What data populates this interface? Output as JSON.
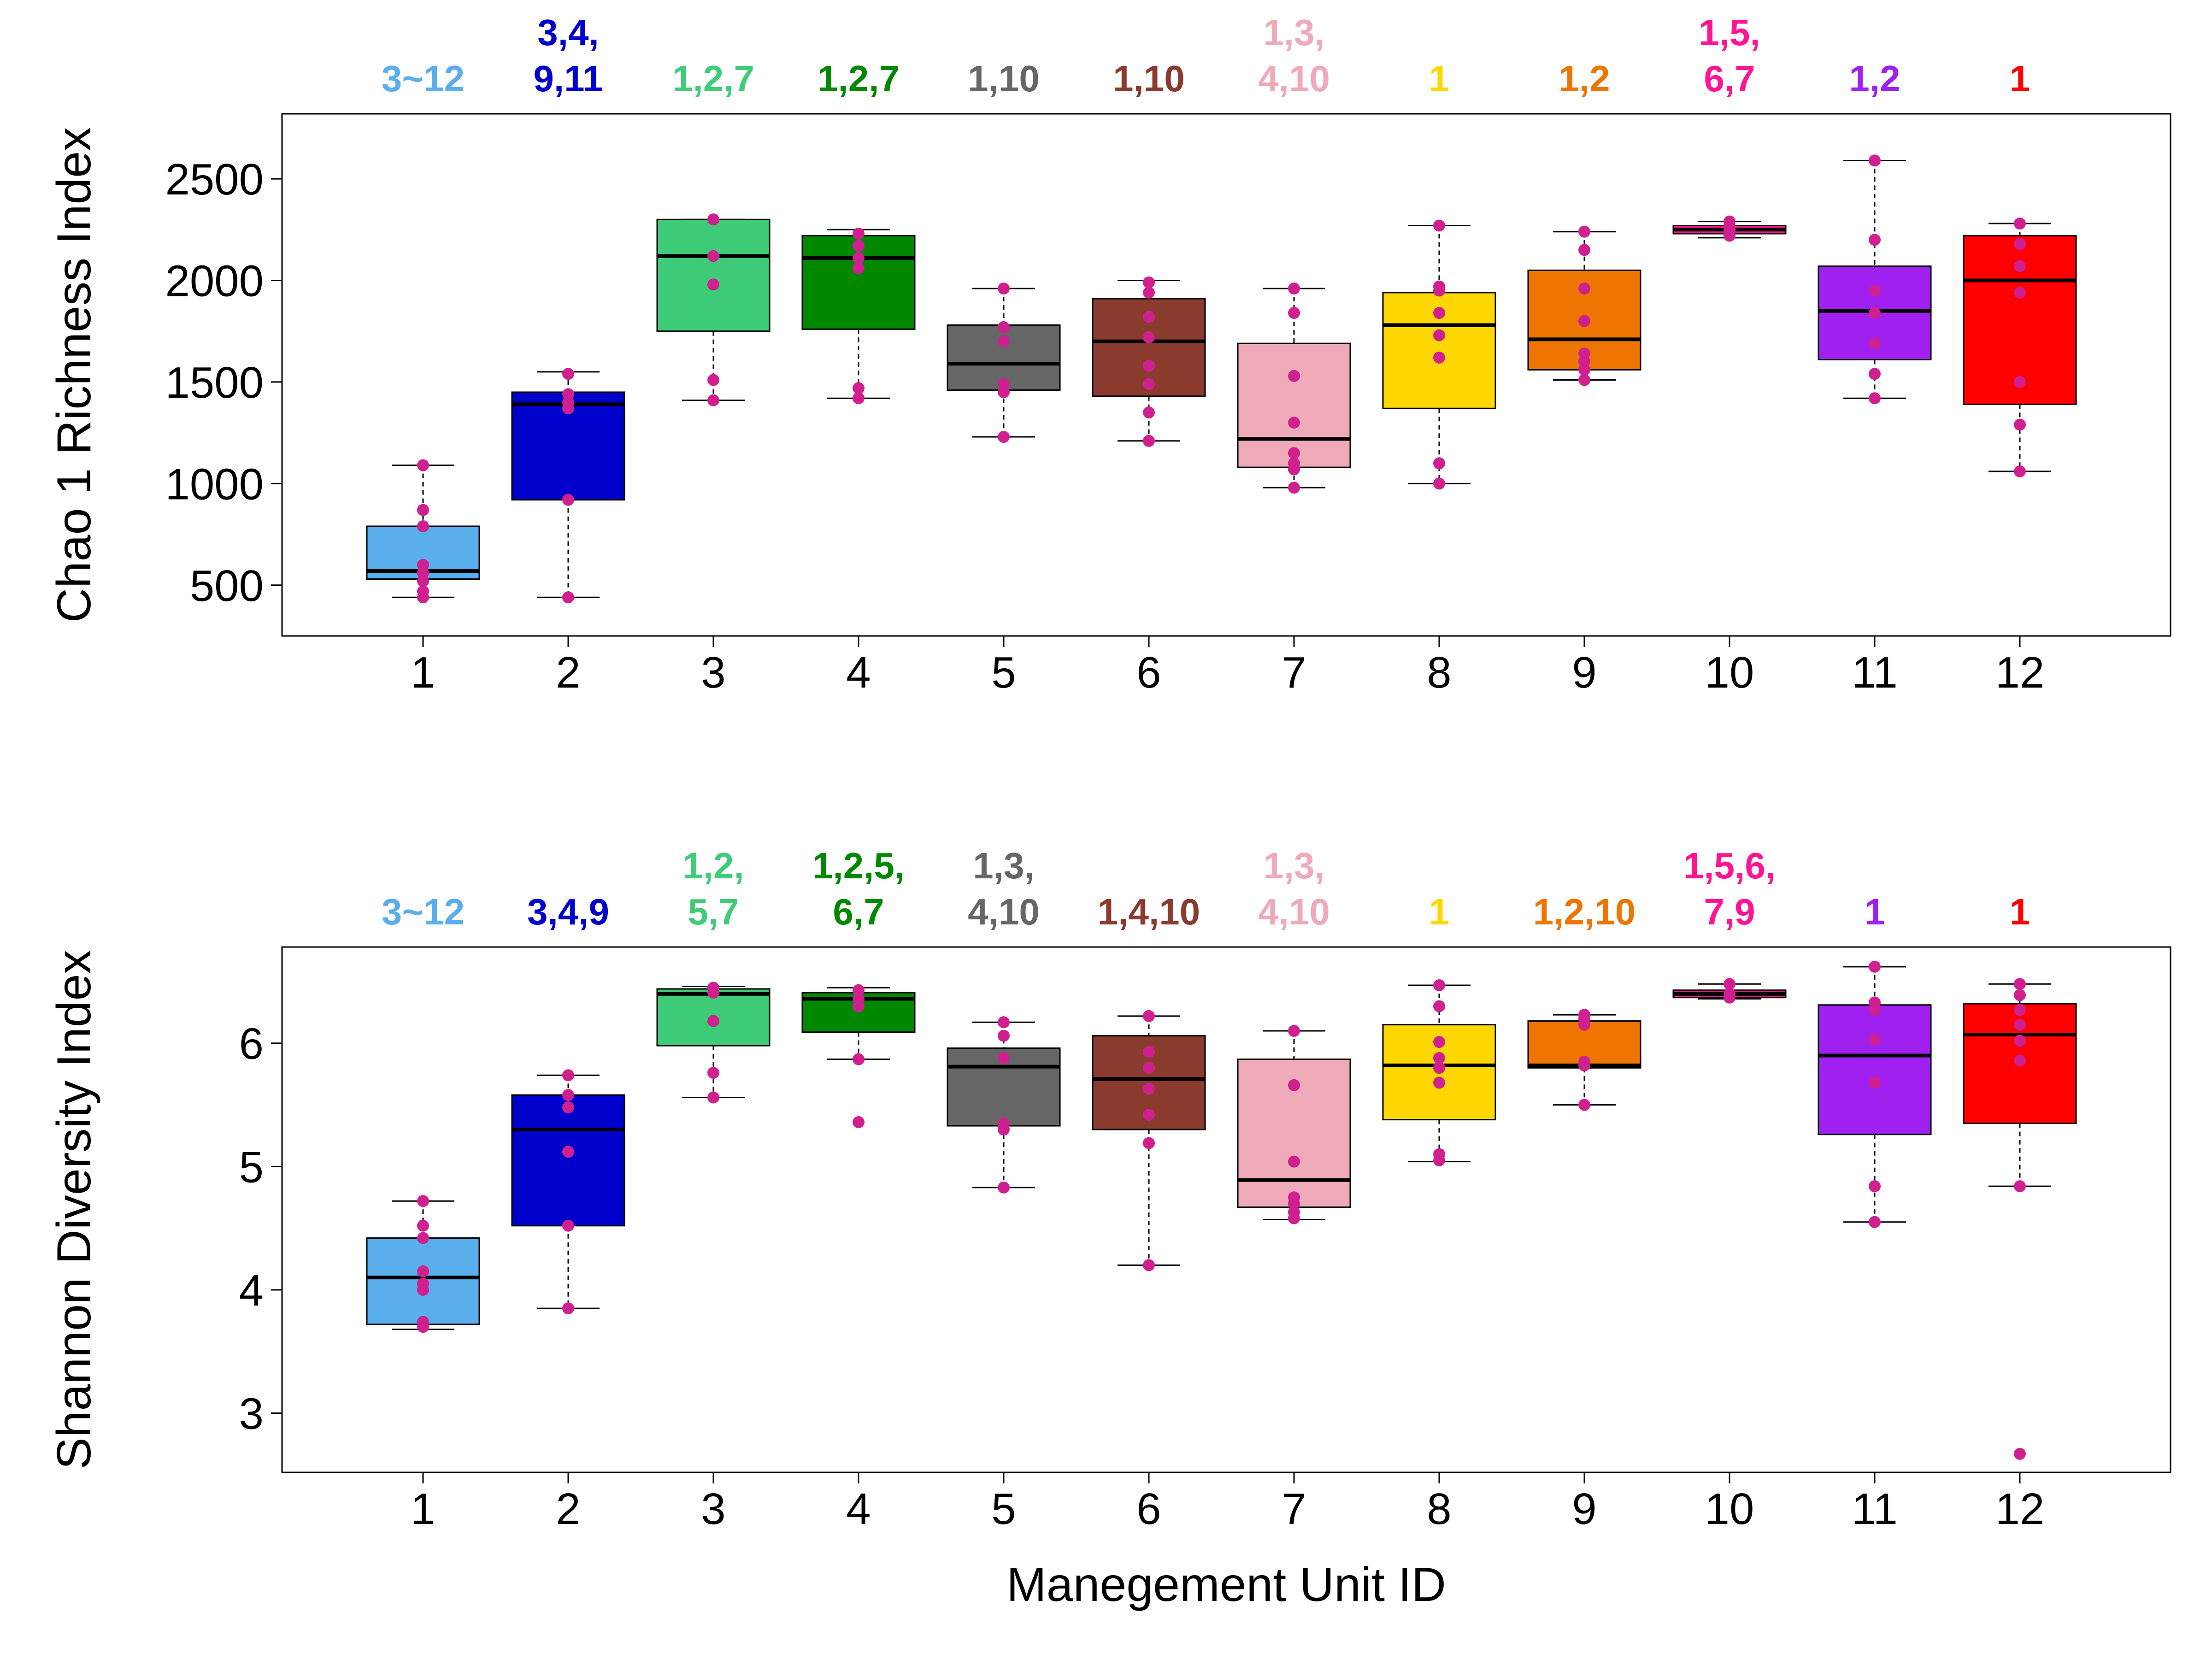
{
  "colors": [
    "#5BAEEC",
    "#0000CC",
    "#3FCC78",
    "#008800",
    "#666666",
    "#8B3A2E",
    "#EEAAB8",
    "#FFD700",
    "#EE7600",
    "#FF1493",
    "#A020F0",
    "#FF0000"
  ],
  "point_color": "#D02090",
  "chart_data": [
    {
      "type": "box",
      "xlabel": "",
      "ylabel": "Chao 1 Richness Index",
      "ylim": [
        250,
        2820
      ],
      "yticks": [
        500,
        1000,
        1500,
        2000,
        2500
      ],
      "categories": [
        "1",
        "2",
        "3",
        "4",
        "5",
        "6",
        "7",
        "8",
        "9",
        "10",
        "11",
        "12"
      ],
      "boxes": [
        {
          "whisker_low": 440,
          "q1": 530,
          "median": 570,
          "q3": 790,
          "whisker_high": 1090
        },
        {
          "whisker_low": 440,
          "q1": 920,
          "median": 1390,
          "q3": 1450,
          "whisker_high": 1550
        },
        {
          "whisker_low": 1410,
          "q1": 1750,
          "median": 2120,
          "q3": 2300,
          "whisker_high": 2300
        },
        {
          "whisker_low": 1420,
          "q1": 1760,
          "median": 2110,
          "q3": 2220,
          "whisker_high": 2250
        },
        {
          "whisker_low": 1230,
          "q1": 1460,
          "median": 1590,
          "q3": 1780,
          "whisker_high": 1960
        },
        {
          "whisker_low": 1210,
          "q1": 1430,
          "median": 1700,
          "q3": 1910,
          "whisker_high": 2000
        },
        {
          "whisker_low": 980,
          "q1": 1080,
          "median": 1220,
          "q3": 1690,
          "whisker_high": 1960
        },
        {
          "whisker_low": 1000,
          "q1": 1370,
          "median": 1780,
          "q3": 1940,
          "whisker_high": 2270
        },
        {
          "whisker_low": 1510,
          "q1": 1560,
          "median": 1710,
          "q3": 2050,
          "whisker_high": 2240
        },
        {
          "whisker_low": 2210,
          "q1": 2230,
          "median": 2250,
          "q3": 2270,
          "whisker_high": 2290
        },
        {
          "whisker_low": 1420,
          "q1": 1610,
          "median": 1850,
          "q3": 2070,
          "whisker_high": 2590
        },
        {
          "whisker_low": 1060,
          "q1": 1390,
          "median": 2000,
          "q3": 2220,
          "whisker_high": 2280
        }
      ],
      "points": [
        [
          440,
          470,
          520,
          560,
          600,
          790,
          870,
          1090
        ],
        [
          440,
          920,
          1370,
          1400,
          1440,
          1540
        ],
        [
          1410,
          1510,
          1980,
          2120,
          2300
        ],
        [
          1420,
          1470,
          2060,
          2110,
          2170,
          2230
        ],
        [
          1230,
          1450,
          1490,
          1700,
          1770,
          1960
        ],
        [
          1210,
          1350,
          1490,
          1580,
          1720,
          1820,
          1940,
          1990
        ],
        [
          980,
          1070,
          1100,
          1150,
          1300,
          1530,
          1840,
          1960
        ],
        [
          1000,
          1100,
          1620,
          1730,
          1840,
          1950,
          1970,
          2270
        ],
        [
          1510,
          1560,
          1600,
          1640,
          1800,
          1960,
          2150,
          2240
        ],
        [
          2220,
          2250,
          2270,
          2290
        ],
        [
          1420,
          1540,
          1690,
          1840,
          1950,
          2200,
          2590
        ],
        [
          1060,
          1290,
          1500,
          1940,
          2070,
          2180,
          2280
        ]
      ],
      "significance": [
        [
          "3~12"
        ],
        [
          "3,4,",
          "9,11"
        ],
        [
          "1,2,7"
        ],
        [
          "1,2,7"
        ],
        [
          "1,10"
        ],
        [
          "1,10"
        ],
        [
          "1,3,",
          "4,10"
        ],
        [
          "1"
        ],
        [
          "1,2"
        ],
        [
          "1,5,",
          "6,7"
        ],
        [
          "1,2"
        ],
        [
          "1"
        ]
      ]
    },
    {
      "type": "box",
      "xlabel": "Manegement Unit ID",
      "ylabel": "Shannon Diversity Index",
      "ylim": [
        2.52,
        6.78
      ],
      "yticks": [
        3,
        4,
        5,
        6
      ],
      "categories": [
        "1",
        "2",
        "3",
        "4",
        "5",
        "6",
        "7",
        "8",
        "9",
        "10",
        "11",
        "12"
      ],
      "boxes": [
        {
          "whisker_low": 3.68,
          "q1": 3.72,
          "median": 4.1,
          "q3": 4.42,
          "whisker_high": 4.72
        },
        {
          "whisker_low": 3.85,
          "q1": 4.52,
          "median": 5.3,
          "q3": 5.58,
          "whisker_high": 5.74
        },
        {
          "whisker_low": 5.56,
          "q1": 5.98,
          "median": 6.4,
          "q3": 6.44,
          "whisker_high": 6.46
        },
        {
          "whisker_low": 5.87,
          "q1": 6.09,
          "median": 6.36,
          "q3": 6.41,
          "whisker_high": 6.45
        },
        {
          "whisker_low": 4.83,
          "q1": 5.33,
          "median": 5.81,
          "q3": 5.96,
          "whisker_high": 6.17
        },
        {
          "whisker_low": 4.2,
          "q1": 5.3,
          "median": 5.71,
          "q3": 6.06,
          "whisker_high": 6.22
        },
        {
          "whisker_low": 4.57,
          "q1": 4.67,
          "median": 4.89,
          "q3": 5.87,
          "whisker_high": 6.1
        },
        {
          "whisker_low": 5.04,
          "q1": 5.38,
          "median": 5.82,
          "q3": 6.15,
          "whisker_high": 6.47
        },
        {
          "whisker_low": 5.5,
          "q1": 5.8,
          "median": 5.82,
          "q3": 6.18,
          "whisker_high": 6.23
        },
        {
          "whisker_low": 6.36,
          "q1": 6.37,
          "median": 6.4,
          "q3": 6.43,
          "whisker_high": 6.48
        },
        {
          "whisker_low": 4.55,
          "q1": 5.26,
          "median": 5.9,
          "q3": 6.31,
          "whisker_high": 6.62
        },
        {
          "whisker_low": 4.84,
          "q1": 5.35,
          "median": 6.07,
          "q3": 6.32,
          "whisker_high": 6.48
        }
      ],
      "points": [
        [
          3.7,
          3.74,
          4.0,
          4.05,
          4.15,
          4.42,
          4.52,
          4.72
        ],
        [
          3.85,
          4.52,
          5.12,
          5.48,
          5.58,
          5.74
        ],
        [
          5.56,
          5.76,
          6.18,
          6.41,
          6.45
        ],
        [
          5.36,
          5.87,
          6.3,
          6.36,
          6.43
        ],
        [
          4.83,
          5.3,
          5.35,
          5.88,
          6.06,
          6.17
        ],
        [
          4.2,
          5.19,
          5.42,
          5.63,
          5.8,
          5.93,
          6.22
        ],
        [
          4.58,
          4.63,
          4.7,
          4.75,
          5.04,
          5.66,
          6.1
        ],
        [
          5.05,
          5.1,
          5.68,
          5.8,
          5.88,
          6.01,
          6.3,
          6.47
        ],
        [
          5.5,
          5.82,
          5.85,
          6.15,
          6.2,
          6.23
        ],
        [
          6.37,
          6.4,
          6.48
        ],
        [
          4.55,
          4.84,
          5.68,
          6.03,
          6.27,
          6.33,
          6.62
        ],
        [
          2.67,
          4.84,
          5.86,
          6.02,
          6.15,
          6.27,
          6.39,
          6.48
        ]
      ],
      "significance": [
        [
          "3~12"
        ],
        [
          "3,4,9"
        ],
        [
          "1,2,",
          "5,7"
        ],
        [
          "1,2,5,",
          "6,7"
        ],
        [
          "1,3,",
          "4,10"
        ],
        [
          "1,4,10"
        ],
        [
          "1,3,",
          "4,10"
        ],
        [
          "1"
        ],
        [
          "1,2,10"
        ],
        [
          "1,5,6,",
          "7,9"
        ],
        [
          "1"
        ],
        [
          "1"
        ]
      ]
    }
  ]
}
